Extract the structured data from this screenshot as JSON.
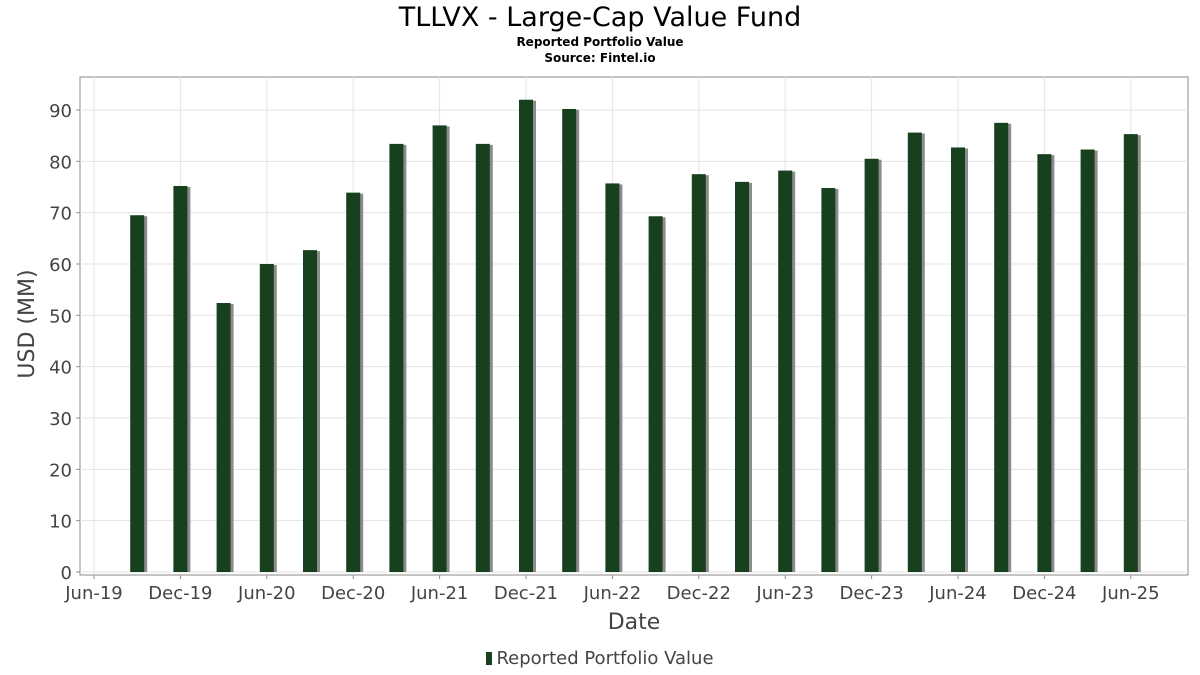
{
  "chart_data": {
    "type": "bar",
    "title": "TLLVX - Large-Cap Value Fund",
    "subtitle": "Reported Portfolio Value",
    "source": "Source: Fintel.io",
    "xlabel": "Date",
    "ylabel": "USD (MM)",
    "ylim": [
      0,
      96
    ],
    "yticks": [
      0,
      10,
      20,
      30,
      40,
      50,
      60,
      70,
      80,
      90
    ],
    "xtick_labels": [
      "Jun-19",
      "Dec-19",
      "Jun-20",
      "Dec-20",
      "Jun-21",
      "Dec-21",
      "Jun-22",
      "Dec-22",
      "Jun-23",
      "Dec-23",
      "Jun-24",
      "Dec-24",
      "Jun-25"
    ],
    "grid": true,
    "legend_position": "bottom",
    "categories": [
      "Sep-19",
      "Dec-19",
      "Mar-20",
      "Jun-20",
      "Sep-20",
      "Dec-20",
      "Mar-21",
      "Jun-21",
      "Sep-21",
      "Dec-21",
      "Mar-22",
      "Jun-22",
      "Sep-22",
      "Dec-22",
      "Mar-23",
      "Jun-23",
      "Sep-23",
      "Dec-23",
      "Mar-24",
      "Jun-24",
      "Sep-24",
      "Dec-24",
      "Mar-25",
      "Jun-25"
    ],
    "series": [
      {
        "name": "Reported Portfolio Value",
        "color": "#17401f",
        "values": [
          69.5,
          75.2,
          52.4,
          60.0,
          62.7,
          73.9,
          83.4,
          87.0,
          83.4,
          92.0,
          90.2,
          75.7,
          69.3,
          77.5,
          76.0,
          78.2,
          74.8,
          80.5,
          85.6,
          82.7,
          87.5,
          81.4,
          82.3,
          85.3
        ]
      }
    ]
  }
}
